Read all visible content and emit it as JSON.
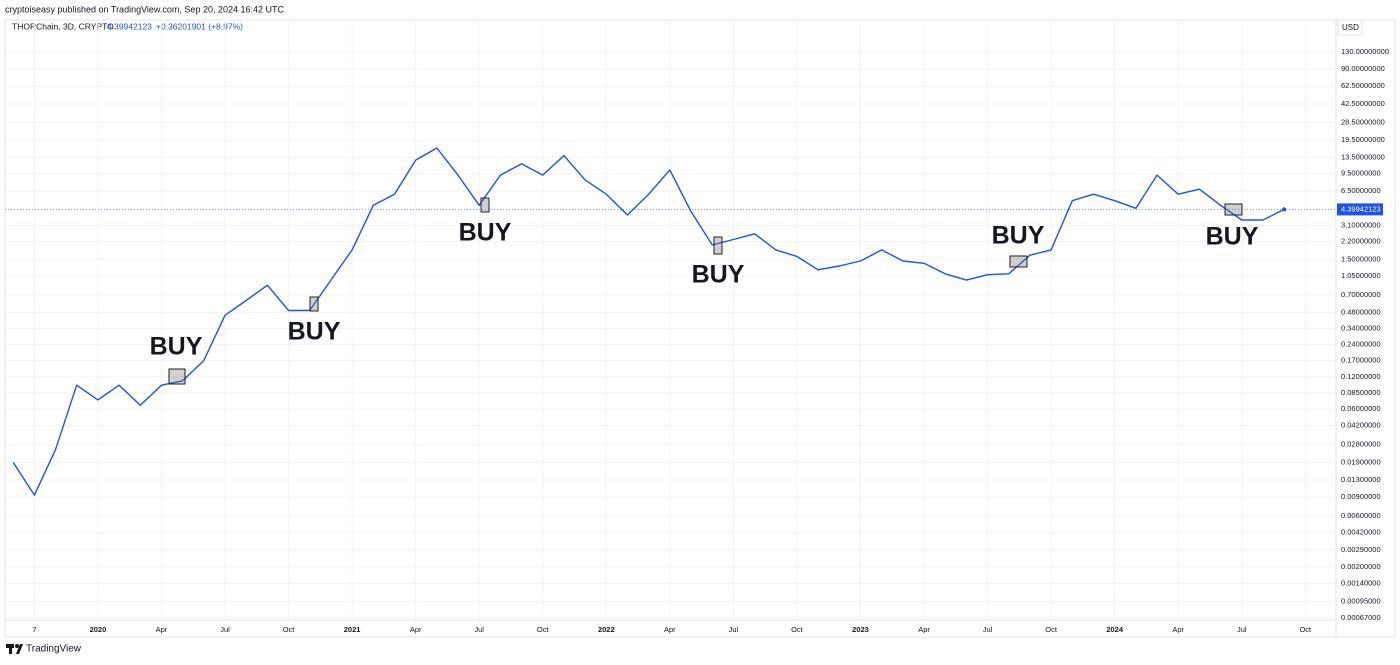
{
  "header": {
    "publisher": "cryptoiseasy published on TradingView.com, Sep 20, 2024 16:42 UTC",
    "symbol": "THORChain, 3D, CRYPTO",
    "change": "+0.36201901 (+8.97%)",
    "brand": "TradingView"
  },
  "chart_data": {
    "type": "line",
    "currency": "USD",
    "last_price": 4.39942123,
    "log_scale": true,
    "grid": true,
    "color": "#1e53e5",
    "x": [
      "2019-09",
      "2019-10",
      "2019-11",
      "2019-12",
      "2020-01",
      "2020-02",
      "2020-03",
      "2020-04",
      "2020-05",
      "2020-06",
      "2020-07",
      "2020-08",
      "2020-09",
      "2020-10",
      "2020-11",
      "2020-12",
      "2021-01",
      "2021-02",
      "2021-03",
      "2021-04",
      "2021-05",
      "2021-06",
      "2021-07",
      "2021-08",
      "2021-09",
      "2021-10",
      "2021-11",
      "2021-12",
      "2022-01",
      "2022-02",
      "2022-03",
      "2022-04",
      "2022-05",
      "2022-06",
      "2022-07",
      "2022-08",
      "2022-09",
      "2022-10",
      "2022-11",
      "2022-12",
      "2023-01",
      "2023-02",
      "2023-03",
      "2023-04",
      "2023-05",
      "2023-06",
      "2023-07",
      "2023-08",
      "2023-09",
      "2023-10",
      "2023-11",
      "2023-12",
      "2024-01",
      "2024-02",
      "2024-03",
      "2024-04",
      "2024-05",
      "2024-06",
      "2024-07",
      "2024-08",
      "2024-09"
    ],
    "values": [
      0.019,
      0.0094,
      0.025,
      0.1,
      0.073,
      0.1,
      0.065,
      0.1,
      0.11,
      0.17,
      0.45,
      0.62,
      0.86,
      0.5,
      0.5,
      0.96,
      1.84,
      4.8,
      6.1,
      12.7,
      16.5,
      9.2,
      4.8,
      9.2,
      11.7,
      9.2,
      14,
      8.3,
      6.1,
      3.9,
      6.1,
      10.3,
      4.2,
      2.05,
      2.3,
      2.6,
      1.84,
      1.6,
      1.2,
      1.3,
      1.45,
      1.84,
      1.45,
      1.38,
      1.1,
      0.96,
      1.08,
      1.1,
      1.64,
      1.84,
      5.3,
      6.1,
      5.3,
      4.5,
      9.2,
      6.1,
      6.8,
      4.8,
      3.5,
      3.5,
      4.39942123
    ],
    "xlim": [
      "2019-08",
      "2024-11"
    ],
    "xticks": [
      {
        "value": "2019-10",
        "label": "7"
      },
      {
        "value": "2020-01",
        "label": "2020"
      },
      {
        "value": "2020-04",
        "label": "Apr"
      },
      {
        "value": "2020-07",
        "label": "Jul"
      },
      {
        "value": "2020-10",
        "label": "Oct"
      },
      {
        "value": "2021-01",
        "label": "2021"
      },
      {
        "value": "2021-04",
        "label": "Apr"
      },
      {
        "value": "2021-07",
        "label": "Jul"
      },
      {
        "value": "2021-10",
        "label": "Oct"
      },
      {
        "value": "2022-01",
        "label": "2022"
      },
      {
        "value": "2022-04",
        "label": "Apr"
      },
      {
        "value": "2022-07",
        "label": "Jul"
      },
      {
        "value": "2022-10",
        "label": "Oct"
      },
      {
        "value": "2023-01",
        "label": "2023"
      },
      {
        "value": "2023-04",
        "label": "Apr"
      },
      {
        "value": "2023-07",
        "label": "Jul"
      },
      {
        "value": "2023-10",
        "label": "Oct"
      },
      {
        "value": "2024-01",
        "label": "2024"
      },
      {
        "value": "2024-04",
        "label": "Apr"
      },
      {
        "value": "2024-07",
        "label": "Jul"
      },
      {
        "value": "2024-10",
        "label": "Oct"
      }
    ],
    "ylim": [
      0.00064,
      259
    ],
    "yticks": [
      {
        "value": 130,
        "label": "130.00000000"
      },
      {
        "value": 90,
        "label": "90.00000000"
      },
      {
        "value": 62.5,
        "label": "62.50000000"
      },
      {
        "value": 42.5,
        "label": "42.50000000"
      },
      {
        "value": 28.5,
        "label": "28.50000000"
      },
      {
        "value": 19.5,
        "label": "19.50000000"
      },
      {
        "value": 13.5,
        "label": "13.50000000"
      },
      {
        "value": 9.5,
        "label": "9.50000000"
      },
      {
        "value": 6.5,
        "label": "6.50000000"
      },
      {
        "value": 3.1,
        "label": "3.10000000"
      },
      {
        "value": 2.2,
        "label": "2.20000000"
      },
      {
        "value": 1.5,
        "label": "1.50000000"
      },
      {
        "value": 1.05,
        "label": "1.05000000"
      },
      {
        "value": 0.7,
        "label": "0.70000000"
      },
      {
        "value": 0.48,
        "label": "0.48000000"
      },
      {
        "value": 0.34,
        "label": "0.34000000"
      },
      {
        "value": 0.24,
        "label": "0.24000000"
      },
      {
        "value": 0.17,
        "label": "0.17000000"
      },
      {
        "value": 0.12,
        "label": "0.12000000"
      },
      {
        "value": 0.085,
        "label": "0.08500000"
      },
      {
        "value": 0.06,
        "label": "0.06000000"
      },
      {
        "value": 0.042,
        "label": "0.04200000"
      },
      {
        "value": 0.028,
        "label": "0.02800000"
      },
      {
        "value": 0.019,
        "label": "0.01900000"
      },
      {
        "value": 0.013,
        "label": "0.01300000"
      },
      {
        "value": 0.009,
        "label": "0.00900000"
      },
      {
        "value": 0.006,
        "label": "0.00600000"
      },
      {
        "value": 0.0042,
        "label": "0.00420000"
      },
      {
        "value": 0.0029,
        "label": "0.00290000"
      },
      {
        "value": 0.002,
        "label": "0.00200000"
      },
      {
        "value": 0.0014,
        "label": "0.00140000"
      },
      {
        "value": 0.00095,
        "label": "0.00095000"
      },
      {
        "value": 0.00067,
        "label": "0.00067000"
      }
    ],
    "annotations": [
      "BUY",
      "BUY",
      "BUY",
      "BUY",
      "BUY",
      "BUY"
    ]
  }
}
